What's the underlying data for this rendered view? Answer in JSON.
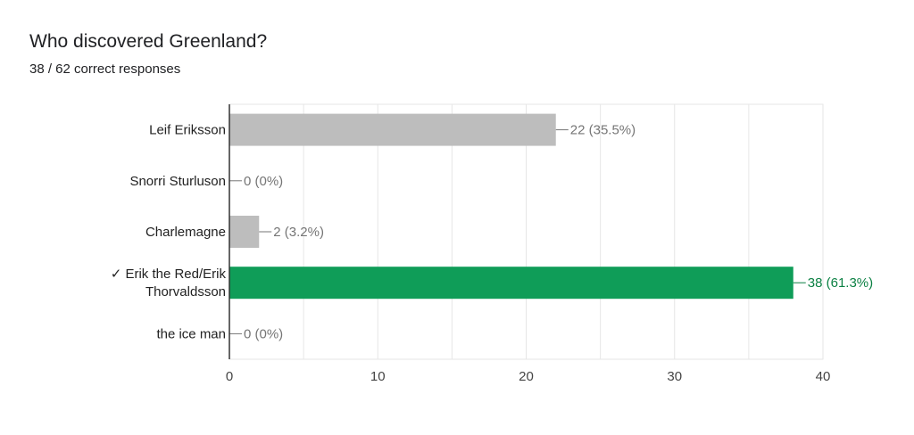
{
  "question": {
    "title": "Who discovered Greenland?",
    "summary": "38 / 62 correct responses"
  },
  "chart_data": {
    "type": "bar",
    "orientation": "horizontal",
    "categories": [
      {
        "lines": [
          "Leif Eriksson"
        ],
        "correct": false
      },
      {
        "lines": [
          "Snorri Sturluson"
        ],
        "correct": false
      },
      {
        "lines": [
          "Charlemagne"
        ],
        "correct": false
      },
      {
        "lines": [
          "Erik the Red/Erik",
          "Thorvaldsson"
        ],
        "correct": true
      },
      {
        "lines": [
          "the ice man"
        ],
        "correct": false
      }
    ],
    "values": [
      22,
      0,
      2,
      38,
      0
    ],
    "data_labels": [
      "22 (35.5%)",
      "0 (0%)",
      "2 (3.2%)",
      "38 (61.3%)",
      "0 (0%)"
    ],
    "correct_mark": "✓",
    "xlim": [
      0,
      40
    ],
    "xticks": [
      0,
      10,
      20,
      30,
      40
    ],
    "grid": true,
    "colors": {
      "default_bar": "#bdbdbd",
      "correct_bar": "#0f9d58",
      "default_label": "#757575",
      "correct_label": "#0b8043",
      "grid": "#e6e6e6",
      "axis": "#333333"
    }
  }
}
